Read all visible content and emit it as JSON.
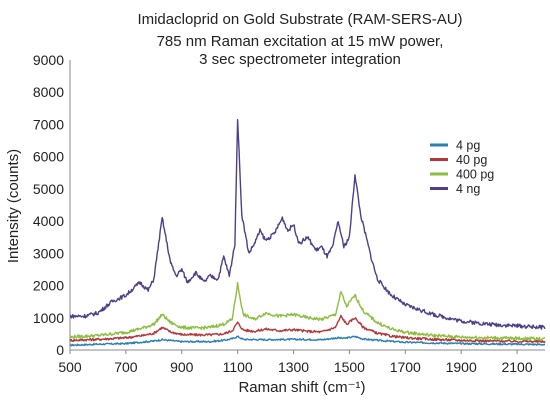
{
  "chart_data": {
    "type": "line",
    "title": "Imidacloprid on Gold Substrate (RAM-SERS-AU)",
    "subtitle_line1": "785 nm Raman excitation at 15 mW power,",
    "subtitle_line2": "3 sec spectrometer integration",
    "xlabel": "Raman shift (cm⁻¹)",
    "ylabel": "Intensity (counts)",
    "xlim": [
      500,
      2200
    ],
    "ylim": [
      0,
      9000
    ],
    "xticks": [
      500,
      700,
      900,
      1100,
      1300,
      1500,
      1700,
      1900,
      2100
    ],
    "yticks": [
      0,
      1000,
      2000,
      3000,
      4000,
      5000,
      6000,
      7000,
      8000,
      9000
    ],
    "grid": false,
    "legend_position": "top-right",
    "series": [
      {
        "name": "4 pg",
        "color": "#2a7fb8",
        "points": [
          [
            500,
            150
          ],
          [
            600,
            180
          ],
          [
            700,
            200
          ],
          [
            800,
            280
          ],
          [
            830,
            320
          ],
          [
            900,
            260
          ],
          [
            1000,
            260
          ],
          [
            1050,
            300
          ],
          [
            1080,
            350
          ],
          [
            1100,
            420
          ],
          [
            1120,
            330
          ],
          [
            1200,
            320
          ],
          [
            1300,
            330
          ],
          [
            1400,
            320
          ],
          [
            1460,
            380
          ],
          [
            1480,
            360
          ],
          [
            1520,
            420
          ],
          [
            1550,
            340
          ],
          [
            1600,
            300
          ],
          [
            1700,
            240
          ],
          [
            1800,
            220
          ],
          [
            1900,
            200
          ],
          [
            2000,
            190
          ],
          [
            2100,
            180
          ],
          [
            2200,
            170
          ]
        ]
      },
      {
        "name": "40 pg",
        "color": "#b3383a",
        "points": [
          [
            500,
            300
          ],
          [
            600,
            330
          ],
          [
            700,
            380
          ],
          [
            760,
            450
          ],
          [
            800,
            520
          ],
          [
            830,
            700
          ],
          [
            860,
            560
          ],
          [
            900,
            480
          ],
          [
            950,
            470
          ],
          [
            1000,
            470
          ],
          [
            1050,
            500
          ],
          [
            1080,
            600
          ],
          [
            1100,
            850
          ],
          [
            1120,
            620
          ],
          [
            1160,
            580
          ],
          [
            1200,
            650
          ],
          [
            1250,
            600
          ],
          [
            1300,
            630
          ],
          [
            1350,
            580
          ],
          [
            1400,
            560
          ],
          [
            1450,
            700
          ],
          [
            1470,
            1050
          ],
          [
            1490,
            800
          ],
          [
            1520,
            1000
          ],
          [
            1550,
            700
          ],
          [
            1600,
            520
          ],
          [
            1650,
            430
          ],
          [
            1700,
            380
          ],
          [
            1800,
            330
          ],
          [
            1900,
            300
          ],
          [
            2000,
            280
          ],
          [
            2100,
            270
          ],
          [
            2200,
            260
          ]
        ]
      },
      {
        "name": "400 pg",
        "color": "#8cbf3f",
        "points": [
          [
            500,
            400
          ],
          [
            600,
            450
          ],
          [
            700,
            550
          ],
          [
            760,
            680
          ],
          [
            800,
            800
          ],
          [
            830,
            1100
          ],
          [
            860,
            850
          ],
          [
            900,
            700
          ],
          [
            950,
            680
          ],
          [
            1000,
            700
          ],
          [
            1050,
            800
          ],
          [
            1080,
            950
          ],
          [
            1100,
            2050
          ],
          [
            1120,
            1100
          ],
          [
            1160,
            950
          ],
          [
            1200,
            1150
          ],
          [
            1250,
            1050
          ],
          [
            1300,
            1100
          ],
          [
            1350,
            1000
          ],
          [
            1400,
            950
          ],
          [
            1450,
            1100
          ],
          [
            1470,
            1800
          ],
          [
            1490,
            1350
          ],
          [
            1520,
            1700
          ],
          [
            1550,
            1200
          ],
          [
            1600,
            850
          ],
          [
            1650,
            650
          ],
          [
            1700,
            550
          ],
          [
            1800,
            450
          ],
          [
            1900,
            400
          ],
          [
            2000,
            380
          ],
          [
            2100,
            360
          ],
          [
            2200,
            350
          ]
        ]
      },
      {
        "name": "4 ng",
        "color": "#4e3f8a",
        "points": [
          [
            500,
            1050
          ],
          [
            550,
            1050
          ],
          [
            600,
            1150
          ],
          [
            650,
            1500
          ],
          [
            700,
            1700
          ],
          [
            750,
            2100
          ],
          [
            780,
            1850
          ],
          [
            800,
            2200
          ],
          [
            830,
            4100
          ],
          [
            860,
            2700
          ],
          [
            880,
            2300
          ],
          [
            900,
            2500
          ],
          [
            920,
            2100
          ],
          [
            950,
            2400
          ],
          [
            980,
            2100
          ],
          [
            1000,
            2300
          ],
          [
            1030,
            2200
          ],
          [
            1050,
            2900
          ],
          [
            1070,
            2300
          ],
          [
            1090,
            3300
          ],
          [
            1100,
            7200
          ],
          [
            1115,
            4200
          ],
          [
            1140,
            3000
          ],
          [
            1160,
            3300
          ],
          [
            1180,
            3700
          ],
          [
            1200,
            3400
          ],
          [
            1230,
            3600
          ],
          [
            1260,
            4100
          ],
          [
            1280,
            3700
          ],
          [
            1300,
            3900
          ],
          [
            1320,
            3300
          ],
          [
            1350,
            3500
          ],
          [
            1380,
            3100
          ],
          [
            1400,
            3200
          ],
          [
            1420,
            2900
          ],
          [
            1440,
            3200
          ],
          [
            1460,
            4000
          ],
          [
            1480,
            3200
          ],
          [
            1500,
            3500
          ],
          [
            1520,
            5450
          ],
          [
            1540,
            4200
          ],
          [
            1560,
            3500
          ],
          [
            1580,
            2800
          ],
          [
            1600,
            2200
          ],
          [
            1650,
            1700
          ],
          [
            1700,
            1400
          ],
          [
            1800,
            1100
          ],
          [
            1900,
            900
          ],
          [
            2000,
            800
          ],
          [
            2100,
            750
          ],
          [
            2200,
            700
          ]
        ]
      }
    ]
  }
}
